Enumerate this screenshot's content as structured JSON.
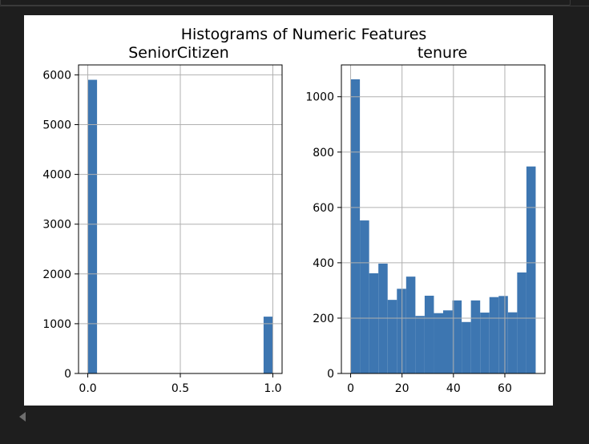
{
  "figure": {
    "suptitle": "Histograms of Numeric Features",
    "bar_color": "#3d76b1"
  },
  "chart_data": [
    {
      "type": "bar",
      "title": "SeniorCitizen",
      "xlabel": "",
      "ylabel": "",
      "grid": true,
      "xlim": [
        -0.05,
        1.05
      ],
      "ylim": [
        0,
        6200
      ],
      "xticks": [
        0.0,
        0.5,
        1.0
      ],
      "xtick_labels": [
        "0.0",
        "0.5",
        "1.0"
      ],
      "yticks": [
        0,
        1000,
        2000,
        3000,
        4000,
        5000,
        6000
      ],
      "ytick_labels": [
        "0",
        "1000",
        "2000",
        "3000",
        "4000",
        "5000",
        "6000"
      ],
      "bin_edges": [
        0.0,
        0.05,
        0.1,
        0.15,
        0.2,
        0.25,
        0.3,
        0.35,
        0.4,
        0.45,
        0.5,
        0.55,
        0.6,
        0.65,
        0.7,
        0.75,
        0.8,
        0.85,
        0.9,
        0.95,
        1.0
      ],
      "values": [
        5901,
        0,
        0,
        0,
        0,
        0,
        0,
        0,
        0,
        0,
        0,
        0,
        0,
        0,
        0,
        0,
        0,
        0,
        0,
        1142
      ]
    },
    {
      "type": "bar",
      "title": "tenure",
      "xlabel": "",
      "ylabel": "",
      "grid": true,
      "xlim": [
        -3.6,
        75.6
      ],
      "ylim": [
        0,
        1115
      ],
      "xticks": [
        0,
        20,
        40,
        60
      ],
      "xtick_labels": [
        "0",
        "20",
        "40",
        "60"
      ],
      "yticks": [
        0,
        200,
        400,
        600,
        800,
        1000
      ],
      "ytick_labels": [
        "0",
        "200",
        "400",
        "600",
        "800",
        "1000"
      ],
      "bin_edges": [
        0.0,
        3.6,
        7.2,
        10.8,
        14.4,
        18.0,
        21.6,
        25.2,
        28.8,
        32.4,
        36.0,
        39.6,
        43.2,
        46.8,
        50.4,
        54.0,
        57.6,
        61.2,
        64.8,
        68.4,
        72.0
      ],
      "values": [
        1063,
        553,
        362,
        397,
        266,
        306,
        350,
        208,
        281,
        218,
        228,
        264,
        186,
        264,
        220,
        276,
        280,
        221,
        365,
        748
      ]
    }
  ]
}
